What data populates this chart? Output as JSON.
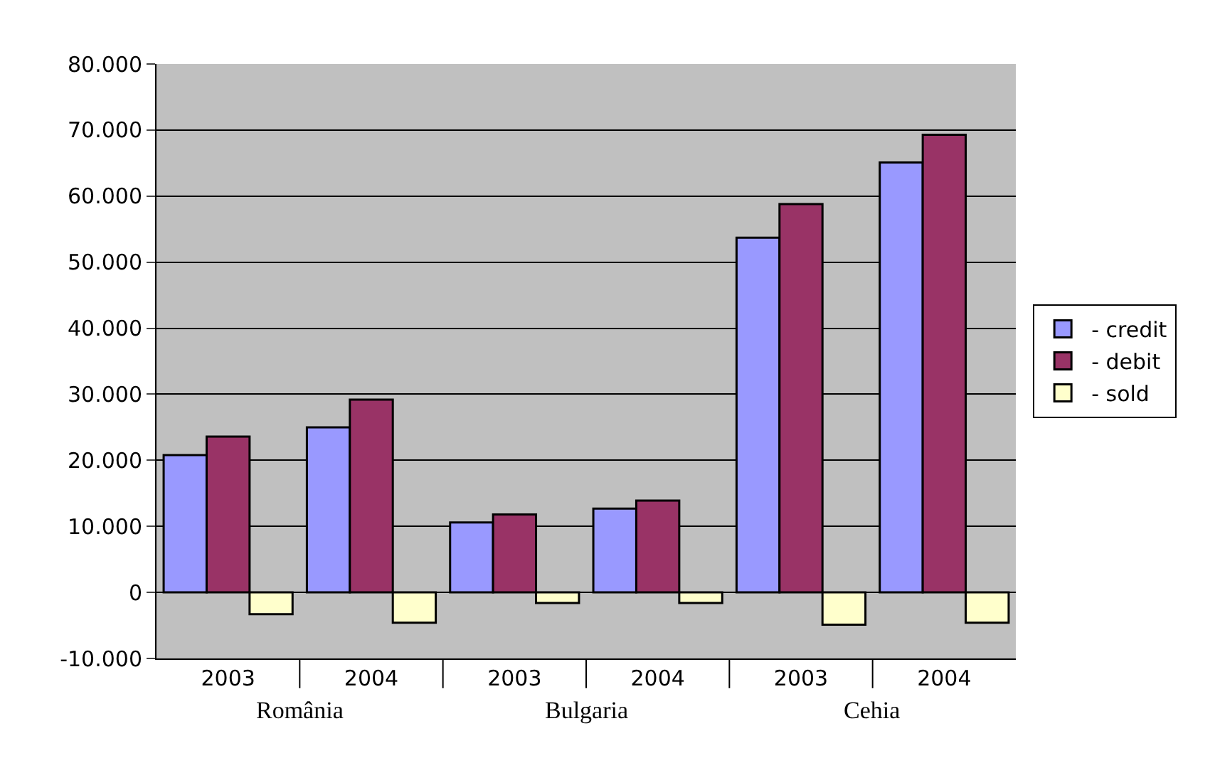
{
  "chart_data": {
    "type": "bar",
    "categories": [
      "2003",
      "2004",
      "2003",
      "2004",
      "2003",
      "2004"
    ],
    "series": [
      {
        "name": "- credit",
        "color": "#9999ff",
        "values": [
          20800,
          25000,
          10600,
          12700,
          53700,
          65100
        ]
      },
      {
        "name": "- debit",
        "color": "#993366",
        "values": [
          23600,
          29200,
          11800,
          13900,
          58800,
          69300
        ]
      },
      {
        "name": "- sold",
        "color": "#ffffcc",
        "values": [
          -3300,
          -4600,
          -1600,
          -1600,
          -4900,
          -4600
        ]
      }
    ],
    "annotations": [
      "România",
      "Bulgaria",
      "Cehia"
    ],
    "ylim": [
      -10000,
      80000
    ],
    "yticks": [
      {
        "value": -10000,
        "label": "-10.000"
      },
      0,
      {
        "value": 10000,
        "label": "10.000"
      },
      {
        "value": 20000,
        "label": "20.000"
      },
      {
        "value": 30000,
        "label": "30.000"
      },
      {
        "value": 40000,
        "label": "40.000"
      },
      {
        "value": 50000,
        "label": "50.000"
      },
      {
        "value": 60000,
        "label": "60.000"
      },
      {
        "value": 70000,
        "label": "70.000"
      },
      {
        "value": 80000,
        "label": "80.000"
      }
    ],
    "grid": "y",
    "legend": "right"
  }
}
